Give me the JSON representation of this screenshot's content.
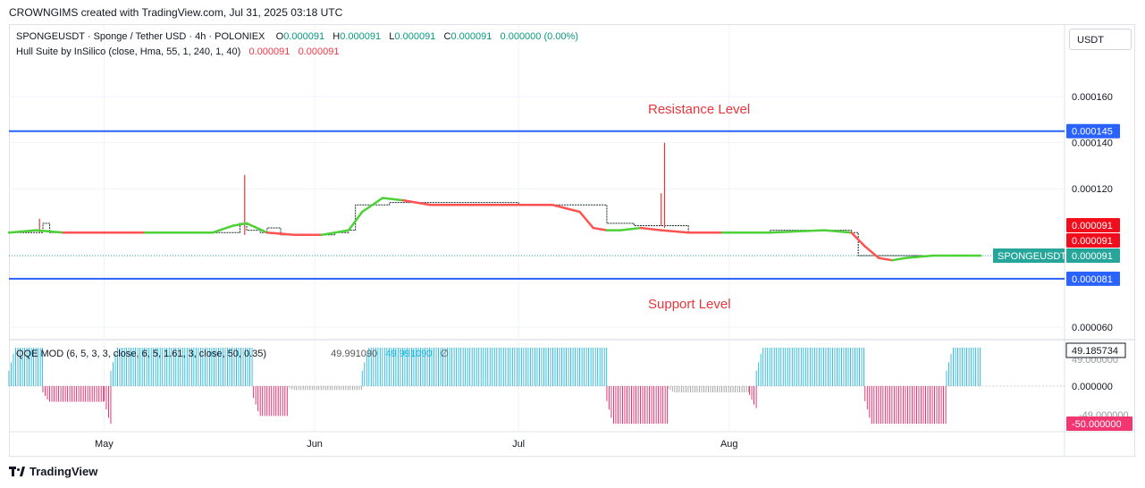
{
  "header": {
    "caption": "CROWNGIMS created with TradingView.com, Jul 31, 2025 03:18 UTC",
    "currency_button": "USDT"
  },
  "legend": {
    "symbol": "SPONGEUSDT · Sponge / Tether USD · 4h · POLONIEX",
    "o_label": "O",
    "o_value": "0.000091",
    "h_label": "H",
    "h_value": "0.000091",
    "l_label": "L",
    "l_value": "0.000091",
    "c_label": "C",
    "c_value": "0.000091",
    "change": "0.000000 (0.00%)",
    "hull_label": "Hull Suite by InSilico (close, Hma, 55, 1, 240, 1, 40)",
    "hull_v1": "0.000091",
    "hull_v2": "0.000091",
    "qqe_label": "QQE MOD (6, 5, 3, 3, close, 6, 5, 1.61, 3, close, 50, 0.35)",
    "qqe_v1": "49.991090",
    "qqe_v2": "49.991090",
    "qqe_v3": "∅"
  },
  "annotations": {
    "resistance": "Resistance Level",
    "support": "Support Level"
  },
  "price_axis": {
    "ticks": [
      "0.000160",
      "0.000140",
      "0.000120",
      "0.000060"
    ],
    "resistance_label": "0.000145",
    "support_label": "0.000081",
    "hull_labels": [
      "0.000091",
      "0.000091"
    ],
    "last_price_label": "0.000091",
    "symbol_tag": "SPONGEUSDT"
  },
  "osc_axis": {
    "top_label": "49.185734",
    "zero_label": "0.000000",
    "bottom_label": "-50.000000",
    "hidden_top": "49.000000",
    "hidden_bottom": "-49.000000"
  },
  "time_axis": [
    "May",
    "Jun",
    "Jul",
    "Aug"
  ],
  "branding": "TradingView",
  "colors": {
    "level_line": "#2962ff",
    "hull_up": "#4cd137",
    "hull_down": "#ff5252",
    "qqe_up": "#1eb8e0",
    "qqe_down": "#e91e63",
    "qqe_neutral": "#9e9e9e",
    "last_price": "#26a69a",
    "red_tag": "#f20d1d"
  },
  "chart_data": [
    {
      "type": "line",
      "title": "SPONGEUSDT · Sponge / Tether USD · 4h · POLONIEX",
      "xlabel": "",
      "ylabel": "",
      "x_ticks": [
        "May",
        "Jun",
        "Jul",
        "Aug"
      ],
      "ylim": [
        5.5e-05,
        0.000175
      ],
      "horizontal_levels": [
        {
          "name": "Resistance Level",
          "value": 0.000145
        },
        {
          "name": "Support Level",
          "value": 8.1e-05
        }
      ],
      "series": [
        {
          "name": "Price",
          "x_days": [
            0,
            4,
            5,
            6,
            30,
            33,
            34,
            35,
            37,
            38,
            40,
            41,
            48,
            50,
            51,
            53,
            56,
            60,
            64,
            70,
            75,
            80,
            84,
            88,
            90,
            92,
            93,
            94,
            98,
            100,
            103,
            108,
            112,
            120,
            124,
            125,
            126,
            128,
            130,
            134,
            138,
            143
          ],
          "values": [
            0.000101,
            0.000101,
            0.000105,
            0.000101,
            0.000101,
            0.000101,
            0.000105,
            0.000102,
            0.000101,
            0.000103,
            0.0001,
            0.0001,
            0.000101,
            0.000102,
            0.000113,
            0.000113,
            0.000114,
            0.000114,
            0.000114,
            0.000114,
            0.000113,
            0.000113,
            0.000113,
            0.000105,
            0.000105,
            0.000104,
            0.000104,
            0.000104,
            0.000104,
            0.000101,
            0.000101,
            0.000101,
            0.000102,
            0.000102,
            0.000101,
            9.1e-05,
            9.1e-05,
            9.1e-05,
            9.1e-05,
            9.1e-05,
            9.1e-05,
            9.1e-05
          ]
        },
        {
          "name": "Hull",
          "x_days": [
            0,
            4,
            8,
            12,
            20,
            30,
            33,
            35,
            38,
            42,
            46,
            50,
            52,
            55,
            58,
            62,
            70,
            80,
            84,
            86,
            88,
            90,
            93,
            96,
            100,
            105,
            112,
            120,
            124,
            126,
            128,
            130,
            132,
            136,
            140,
            143
          ],
          "values": [
            0.000101,
            0.000102,
            0.000101,
            0.000101,
            0.000101,
            0.000101,
            0.000104,
            0.000105,
            0.000101,
            0.0001,
            0.0001,
            0.000102,
            0.00011,
            0.000116,
            0.000115,
            0.000113,
            0.000113,
            0.000113,
            0.00011,
            0.000103,
            0.000102,
            0.000102,
            0.000103,
            0.000102,
            0.000101,
            0.000101,
            0.000101,
            0.000102,
            0.000101,
            9.5e-05,
            9e-05,
            8.9e-05,
            9e-05,
            9.1e-05,
            9.1e-05,
            9.1e-05
          ],
          "trend": [
            "up",
            "up",
            "down",
            "down",
            "up",
            "up",
            "up",
            "up",
            "down",
            "down",
            "up",
            "up",
            "up",
            "up",
            "down",
            "down",
            "down",
            "down",
            "down",
            "down",
            "up",
            "up",
            "down",
            "down",
            "down",
            "up",
            "up",
            "up",
            "down",
            "down",
            "down",
            "up",
            "up",
            "up",
            "up",
            "up"
          ]
        }
      ]
    },
    {
      "type": "bar",
      "title": "QQE MOD (6, 5, 3, 3, close, 6, 5, 1.61, 3, close, 50, 0.35)",
      "xlabel": "",
      "ylabel": "",
      "ylim": [
        -55,
        55
      ],
      "segments": [
        {
          "start_day": 0,
          "end_day": 5,
          "value": 49,
          "trend": "up"
        },
        {
          "start_day": 5,
          "end_day": 14,
          "value": -20,
          "trend": "down"
        },
        {
          "start_day": 14,
          "end_day": 15,
          "value": -48,
          "trend": "down"
        },
        {
          "start_day": 15,
          "end_day": 36,
          "value": 49,
          "trend": "up"
        },
        {
          "start_day": 36,
          "end_day": 41,
          "value": -38,
          "trend": "down"
        },
        {
          "start_day": 41,
          "end_day": 52,
          "value": -5,
          "trend": "neutral"
        },
        {
          "start_day": 52,
          "end_day": 88,
          "value": 49,
          "trend": "up"
        },
        {
          "start_day": 88,
          "end_day": 97,
          "value": -48,
          "trend": "down"
        },
        {
          "start_day": 97,
          "end_day": 109,
          "value": -8,
          "trend": "neutral"
        },
        {
          "start_day": 109,
          "end_day": 110,
          "value": -28,
          "trend": "down"
        },
        {
          "start_day": 110,
          "end_day": 126,
          "value": 49,
          "trend": "up"
        },
        {
          "start_day": 126,
          "end_day": 138,
          "value": -48,
          "trend": "down"
        },
        {
          "start_day": 138,
          "end_day": 143,
          "value": 49,
          "trend": "up"
        }
      ]
    }
  ]
}
